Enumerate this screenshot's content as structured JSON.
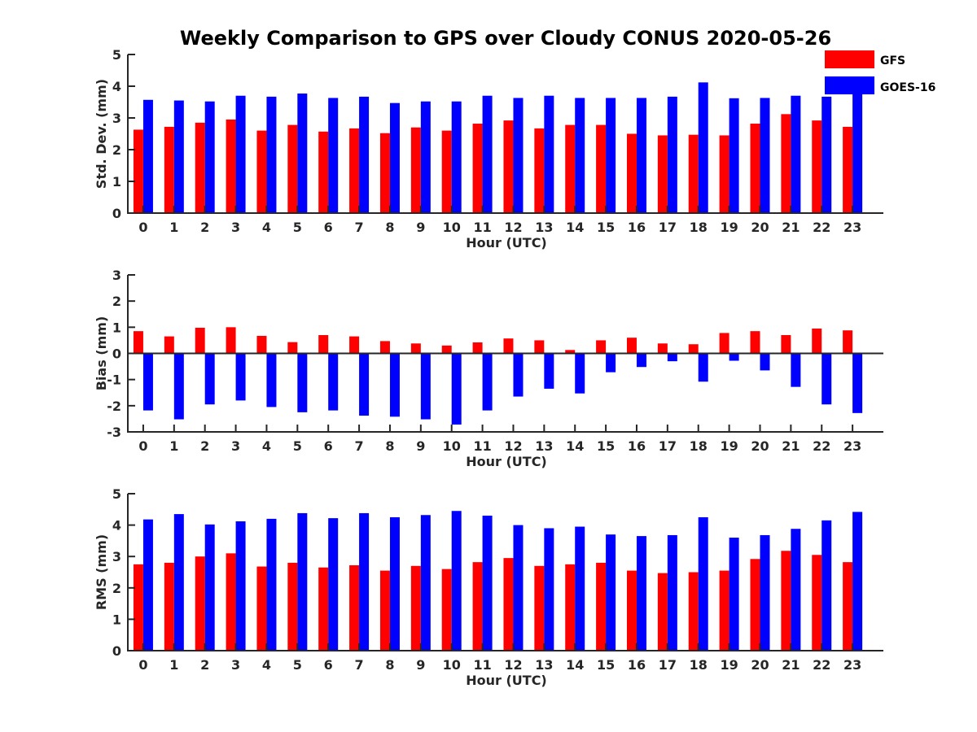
{
  "chart_data": {
    "title": "Weekly Comparison to GPS over Cloudy CONUS 2020-05-26",
    "legend": {
      "placement": "top-right",
      "entries": [
        {
          "name": "GFS",
          "color": "#ff0000"
        },
        {
          "name": "GOES-16",
          "color": "#0000ff"
        }
      ]
    },
    "panels": [
      {
        "type": "bar",
        "xlabel": "Hour (UTC)",
        "ylabel": "Std. Dev. (mm)",
        "ylim": [
          0,
          5
        ],
        "yticks": [
          "0",
          "1",
          "2",
          "3",
          "4",
          "5"
        ],
        "categories": [
          "0",
          "1",
          "2",
          "3",
          "4",
          "5",
          "6",
          "7",
          "8",
          "9",
          "10",
          "11",
          "12",
          "13",
          "14",
          "15",
          "16",
          "17",
          "18",
          "19",
          "20",
          "21",
          "22",
          "23"
        ],
        "series": [
          {
            "name": "GFS",
            "color": "#ff0000",
            "values": [
              2.63,
              2.72,
              2.85,
              2.95,
              2.6,
              2.78,
              2.57,
              2.67,
              2.52,
              2.7,
              2.6,
              2.82,
              2.92,
              2.67,
              2.78,
              2.78,
              2.5,
              2.45,
              2.47,
              2.45,
              2.82,
              3.12,
              2.92,
              2.72
            ]
          },
          {
            "name": "GOES-16",
            "color": "#0000ff",
            "values": [
              3.57,
              3.55,
              3.52,
              3.7,
              3.67,
              3.77,
              3.63,
              3.67,
              3.47,
              3.52,
              3.52,
              3.7,
              3.63,
              3.7,
              3.63,
              3.63,
              3.63,
              3.67,
              4.12,
              3.62,
              3.63,
              3.7,
              3.67,
              3.75
            ]
          }
        ]
      },
      {
        "type": "bar",
        "xlabel": "Hour (UTC)",
        "ylabel": "Bias (mm)",
        "ylim": [
          -3,
          3
        ],
        "yticks": [
          "-3",
          "-2",
          "-1",
          "0",
          "1",
          "2",
          "3"
        ],
        "categories": [
          "0",
          "1",
          "2",
          "3",
          "4",
          "5",
          "6",
          "7",
          "8",
          "9",
          "10",
          "11",
          "12",
          "13",
          "14",
          "15",
          "16",
          "17",
          "18",
          "19",
          "20",
          "21",
          "22",
          "23"
        ],
        "series": [
          {
            "name": "GFS",
            "color": "#ff0000",
            "values": [
              0.85,
              0.65,
              0.98,
              1.0,
              0.67,
              0.43,
              0.7,
              0.65,
              0.47,
              0.38,
              0.3,
              0.42,
              0.57,
              0.5,
              0.13,
              0.5,
              0.6,
              0.38,
              0.35,
              0.78,
              0.85,
              0.7,
              0.95,
              0.88
            ]
          },
          {
            "name": "GOES-16",
            "color": "#0000ff",
            "values": [
              -2.18,
              -2.52,
              -1.95,
              -1.8,
              -2.05,
              -2.25,
              -2.18,
              -2.38,
              -2.42,
              -2.52,
              -2.72,
              -2.18,
              -1.65,
              -1.35,
              -1.53,
              -0.72,
              -0.52,
              -0.3,
              -1.08,
              -0.28,
              -0.65,
              -1.28,
              -1.95,
              -2.28
            ]
          }
        ]
      },
      {
        "type": "bar",
        "xlabel": "Hour (UTC)",
        "ylabel": "RMS (mm)",
        "ylim": [
          0,
          5
        ],
        "yticks": [
          "0",
          "1",
          "2",
          "3",
          "4",
          "5"
        ],
        "categories": [
          "0",
          "1",
          "2",
          "3",
          "4",
          "5",
          "6",
          "7",
          "8",
          "9",
          "10",
          "11",
          "12",
          "13",
          "14",
          "15",
          "16",
          "17",
          "18",
          "19",
          "20",
          "21",
          "22",
          "23"
        ],
        "series": [
          {
            "name": "GFS",
            "color": "#ff0000",
            "values": [
              2.75,
              2.8,
              3.0,
              3.1,
              2.68,
              2.8,
              2.65,
              2.72,
              2.55,
              2.7,
              2.6,
              2.82,
              2.95,
              2.7,
              2.75,
              2.8,
              2.55,
              2.47,
              2.5,
              2.55,
              2.92,
              3.18,
              3.05,
              2.82
            ]
          },
          {
            "name": "GOES-16",
            "color": "#0000ff",
            "values": [
              4.18,
              4.35,
              4.02,
              4.12,
              4.2,
              4.38,
              4.22,
              4.38,
              4.25,
              4.32,
              4.45,
              4.3,
              4.0,
              3.9,
              3.95,
              3.7,
              3.65,
              3.68,
              4.25,
              3.6,
              3.68,
              3.88,
              4.15,
              4.42
            ]
          }
        ]
      }
    ]
  }
}
